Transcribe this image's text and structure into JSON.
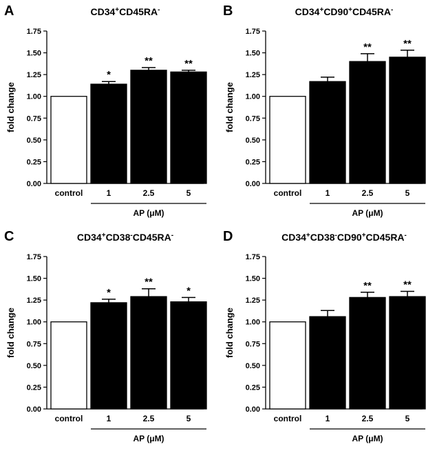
{
  "chart_data": [
    {
      "panel": "A",
      "type": "bar",
      "title_parts": [
        {
          "text": "CD34",
          "sup": "+"
        },
        {
          "text": "CD45RA",
          "sup": "-"
        }
      ],
      "ylabel": "fold change",
      "ylim": [
        0,
        1.75
      ],
      "yticks": [
        "0.00",
        "0.25",
        "0.50",
        "0.75",
        "1.00",
        "1.25",
        "1.50",
        "1.75"
      ],
      "categories": [
        "control",
        "1",
        "2.5",
        "5"
      ],
      "values": [
        1.0,
        1.14,
        1.3,
        1.28
      ],
      "errors": [
        0,
        0.03,
        0.03,
        0.02
      ],
      "fills": [
        "#ffffff",
        "#000000",
        "#000000",
        "#000000"
      ],
      "significance": [
        "",
        "*",
        "**",
        "**"
      ],
      "group_label": "AP (μM)"
    },
    {
      "panel": "B",
      "type": "bar",
      "title_parts": [
        {
          "text": "CD34",
          "sup": "+"
        },
        {
          "text": "CD90",
          "sup": "+"
        },
        {
          "text": "CD45RA",
          "sup": "-"
        }
      ],
      "ylabel": "fold change",
      "ylim": [
        0,
        1.75
      ],
      "yticks": [
        "0.00",
        "0.25",
        "0.50",
        "0.75",
        "1.00",
        "1.25",
        "1.50",
        "1.75"
      ],
      "categories": [
        "control",
        "1",
        "2.5",
        "5"
      ],
      "values": [
        1.0,
        1.17,
        1.4,
        1.45
      ],
      "errors": [
        0,
        0.05,
        0.09,
        0.08
      ],
      "fills": [
        "#ffffff",
        "#000000",
        "#000000",
        "#000000"
      ],
      "significance": [
        "",
        "",
        "**",
        "**"
      ],
      "group_label": "AP (μM)"
    },
    {
      "panel": "C",
      "type": "bar",
      "title_parts": [
        {
          "text": "CD34",
          "sup": "+"
        },
        {
          "text": "CD38",
          "sup": "-"
        },
        {
          "text": "CD45RA",
          "sup": "-"
        }
      ],
      "ylabel": "fold change",
      "ylim": [
        0,
        1.75
      ],
      "yticks": [
        "0.00",
        "0.25",
        "0.50",
        "0.75",
        "1.00",
        "1.25",
        "1.50",
        "1.75"
      ],
      "categories": [
        "control",
        "1",
        "2.5",
        "5"
      ],
      "values": [
        1.0,
        1.22,
        1.29,
        1.23
      ],
      "errors": [
        0,
        0.04,
        0.09,
        0.05
      ],
      "fills": [
        "#ffffff",
        "#000000",
        "#000000",
        "#000000"
      ],
      "significance": [
        "",
        "*",
        "**",
        "*"
      ],
      "group_label": "AP (μM)"
    },
    {
      "panel": "D",
      "type": "bar",
      "title_parts": [
        {
          "text": "CD34",
          "sup": "+"
        },
        {
          "text": "CD38",
          "sup": "-"
        },
        {
          "text": "CD90",
          "sup": "+"
        },
        {
          "text": "CD45RA",
          "sup": "-"
        }
      ],
      "ylabel": "fold change",
      "ylim": [
        0,
        1.75
      ],
      "yticks": [
        "0.00",
        "0.25",
        "0.50",
        "0.75",
        "1.00",
        "1.25",
        "1.50",
        "1.75"
      ],
      "categories": [
        "control",
        "1",
        "2.5",
        "5"
      ],
      "values": [
        1.0,
        1.06,
        1.28,
        1.29
      ],
      "errors": [
        0,
        0.07,
        0.06,
        0.06
      ],
      "fills": [
        "#ffffff",
        "#000000",
        "#000000",
        "#000000"
      ],
      "significance": [
        "",
        "",
        "**",
        "**"
      ],
      "group_label": "AP (μM)"
    }
  ]
}
